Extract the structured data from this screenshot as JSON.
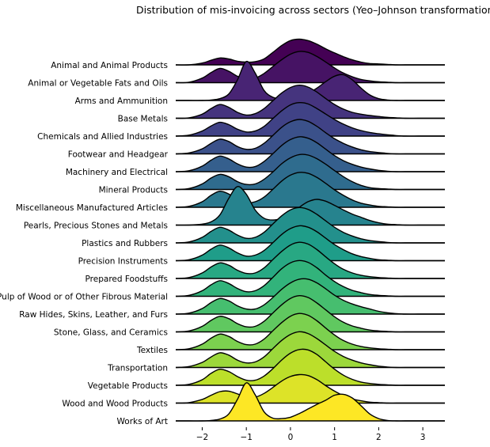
{
  "chart_data": {
    "type": "area",
    "subtype": "ridgeline",
    "title": "Distribution of mis-invoicing across sectors (Yeo–Johnson transformation)",
    "xlabel": "",
    "ylabel": "",
    "xlim": [
      -2.6,
      3.5
    ],
    "xticks": [
      -2,
      -1,
      0,
      1,
      2,
      3
    ],
    "xtick_labels": [
      "−2",
      "−1",
      "0",
      "1",
      "2",
      "3"
    ],
    "grid": false,
    "legend": "none",
    "colormap": "viridis",
    "colormap_stops": [
      "#440154",
      "#482878",
      "#3e4989",
      "#31688e",
      "#26828e",
      "#1f9e89",
      "#35b779",
      "#6ece58",
      "#b5de2b",
      "#fde725"
    ],
    "x_samples": [
      -2.6,
      -2.3,
      -2.0,
      -1.8,
      -1.6,
      -1.4,
      -1.2,
      -1.0,
      -0.8,
      -0.6,
      -0.4,
      -0.2,
      0.0,
      0.2,
      0.4,
      0.6,
      0.8,
      1.0,
      1.2,
      1.4,
      1.6,
      1.8,
      2.0,
      2.2,
      2.4,
      2.6,
      2.9,
      3.2,
      3.5
    ],
    "series": [
      {
        "name": "Animal and Animal Products",
        "values": [
          0.0,
          0.0,
          0.04,
          0.1,
          0.15,
          0.13,
          0.08,
          0.06,
          0.07,
          0.13,
          0.27,
          0.42,
          0.53,
          0.56,
          0.53,
          0.45,
          0.35,
          0.26,
          0.18,
          0.11,
          0.06,
          0.03,
          0.02,
          0.01,
          0.0,
          0.0,
          0.0,
          0.0,
          0.0
        ]
      },
      {
        "name": "Animal or Vegetable Fats and Oils",
        "values": [
          0.0,
          0.01,
          0.1,
          0.22,
          0.31,
          0.25,
          0.14,
          0.08,
          0.1,
          0.2,
          0.35,
          0.5,
          0.62,
          0.68,
          0.66,
          0.57,
          0.45,
          0.32,
          0.21,
          0.13,
          0.07,
          0.04,
          0.02,
          0.01,
          0.0,
          0.0,
          0.0,
          0.0,
          0.0
        ]
      },
      {
        "name": "Arms and Ammunition",
        "values": [
          0.0,
          0.0,
          0.0,
          0.01,
          0.04,
          0.14,
          0.45,
          0.85,
          0.6,
          0.22,
          0.07,
          0.04,
          0.05,
          0.09,
          0.16,
          0.27,
          0.41,
          0.53,
          0.56,
          0.45,
          0.27,
          0.12,
          0.04,
          0.01,
          0.0,
          0.0,
          0.0,
          0.0,
          0.0
        ]
      },
      {
        "name": "Base Metals",
        "values": [
          0.0,
          0.01,
          0.09,
          0.21,
          0.3,
          0.24,
          0.13,
          0.07,
          0.1,
          0.21,
          0.38,
          0.55,
          0.67,
          0.72,
          0.68,
          0.57,
          0.43,
          0.3,
          0.2,
          0.13,
          0.09,
          0.06,
          0.04,
          0.02,
          0.01,
          0.0,
          0.0,
          0.0,
          0.0
        ]
      },
      {
        "name": "Chemicals and Allied Industries",
        "values": [
          0.0,
          0.02,
          0.11,
          0.22,
          0.3,
          0.25,
          0.15,
          0.09,
          0.11,
          0.21,
          0.38,
          0.55,
          0.68,
          0.73,
          0.7,
          0.6,
          0.48,
          0.36,
          0.26,
          0.18,
          0.12,
          0.08,
          0.05,
          0.03,
          0.01,
          0.0,
          0.0,
          0.0,
          0.0
        ]
      },
      {
        "name": "Footwear and Headgear",
        "values": [
          0.0,
          0.02,
          0.11,
          0.23,
          0.32,
          0.27,
          0.16,
          0.1,
          0.12,
          0.23,
          0.4,
          0.58,
          0.7,
          0.75,
          0.71,
          0.6,
          0.46,
          0.33,
          0.23,
          0.15,
          0.09,
          0.05,
          0.03,
          0.01,
          0.0,
          0.0,
          0.0,
          0.0,
          0.0
        ]
      },
      {
        "name": "Machinery and Electrical",
        "values": [
          0.0,
          0.02,
          0.12,
          0.25,
          0.34,
          0.28,
          0.17,
          0.1,
          0.11,
          0.22,
          0.39,
          0.57,
          0.7,
          0.76,
          0.73,
          0.63,
          0.49,
          0.35,
          0.24,
          0.16,
          0.1,
          0.06,
          0.03,
          0.01,
          0.0,
          0.0,
          0.0,
          0.0,
          0.0
        ]
      },
      {
        "name": "Mineral Products",
        "values": [
          0.0,
          0.02,
          0.12,
          0.25,
          0.33,
          0.28,
          0.17,
          0.11,
          0.12,
          0.22,
          0.38,
          0.56,
          0.69,
          0.76,
          0.75,
          0.67,
          0.55,
          0.41,
          0.28,
          0.17,
          0.09,
          0.04,
          0.02,
          0.01,
          0.0,
          0.0,
          0.0,
          0.0,
          0.0
        ]
      },
      {
        "name": "Miscellaneous Manufactured Articles",
        "values": [
          0.0,
          0.02,
          0.12,
          0.26,
          0.35,
          0.29,
          0.17,
          0.1,
          0.12,
          0.22,
          0.39,
          0.57,
          0.7,
          0.76,
          0.74,
          0.65,
          0.52,
          0.38,
          0.26,
          0.16,
          0.09,
          0.05,
          0.02,
          0.01,
          0.0,
          0.0,
          0.0,
          0.0,
          0.0
        ]
      },
      {
        "name": "Pearls, Precious Stones and Metals",
        "values": [
          0.0,
          0.0,
          0.02,
          0.07,
          0.22,
          0.58,
          0.84,
          0.67,
          0.33,
          0.15,
          0.11,
          0.15,
          0.25,
          0.39,
          0.51,
          0.56,
          0.52,
          0.43,
          0.33,
          0.24,
          0.17,
          0.1,
          0.05,
          0.02,
          0.01,
          0.0,
          0.0,
          0.0,
          0.0
        ]
      },
      {
        "name": "Plastics and Rubbers",
        "values": [
          0.0,
          0.02,
          0.12,
          0.25,
          0.34,
          0.28,
          0.17,
          0.1,
          0.12,
          0.23,
          0.41,
          0.59,
          0.72,
          0.77,
          0.73,
          0.62,
          0.48,
          0.34,
          0.23,
          0.15,
          0.09,
          0.05,
          0.03,
          0.01,
          0.0,
          0.0,
          0.0,
          0.0,
          0.0
        ]
      },
      {
        "name": "Precision Instruments",
        "values": [
          0.0,
          0.02,
          0.12,
          0.25,
          0.34,
          0.28,
          0.17,
          0.1,
          0.12,
          0.22,
          0.39,
          0.57,
          0.7,
          0.76,
          0.73,
          0.63,
          0.49,
          0.35,
          0.24,
          0.15,
          0.09,
          0.05,
          0.02,
          0.01,
          0.0,
          0.0,
          0.0,
          0.0,
          0.0
        ]
      },
      {
        "name": "Prepared Foodstuffs",
        "values": [
          0.0,
          0.02,
          0.12,
          0.25,
          0.34,
          0.29,
          0.18,
          0.11,
          0.12,
          0.23,
          0.41,
          0.59,
          0.73,
          0.79,
          0.75,
          0.63,
          0.47,
          0.32,
          0.2,
          0.12,
          0.07,
          0.04,
          0.02,
          0.01,
          0.0,
          0.0,
          0.0,
          0.0,
          0.0
        ]
      },
      {
        "name": "Pulp of Wood or of Other Fibrous Material",
        "values": [
          0.0,
          0.02,
          0.12,
          0.25,
          0.34,
          0.28,
          0.17,
          0.1,
          0.12,
          0.23,
          0.41,
          0.6,
          0.73,
          0.78,
          0.74,
          0.62,
          0.46,
          0.32,
          0.21,
          0.13,
          0.08,
          0.04,
          0.02,
          0.01,
          0.0,
          0.0,
          0.0,
          0.0,
          0.0
        ]
      },
      {
        "name": "Raw Hides, Skins, Leather, and Furs",
        "values": [
          0.0,
          0.02,
          0.12,
          0.25,
          0.34,
          0.29,
          0.18,
          0.11,
          0.11,
          0.2,
          0.36,
          0.54,
          0.68,
          0.76,
          0.76,
          0.68,
          0.55,
          0.41,
          0.3,
          0.22,
          0.16,
          0.11,
          0.06,
          0.03,
          0.01,
          0.0,
          0.0,
          0.0,
          0.0
        ]
      },
      {
        "name": "Stone, Glass, and Ceramics",
        "values": [
          0.0,
          0.02,
          0.12,
          0.25,
          0.34,
          0.29,
          0.18,
          0.11,
          0.12,
          0.23,
          0.41,
          0.59,
          0.73,
          0.79,
          0.75,
          0.63,
          0.48,
          0.33,
          0.21,
          0.13,
          0.08,
          0.04,
          0.02,
          0.01,
          0.0,
          0.0,
          0.0,
          0.0,
          0.0
        ]
      },
      {
        "name": "Textiles",
        "values": [
          0.0,
          0.02,
          0.12,
          0.25,
          0.34,
          0.29,
          0.18,
          0.11,
          0.12,
          0.23,
          0.41,
          0.59,
          0.73,
          0.79,
          0.75,
          0.63,
          0.47,
          0.32,
          0.2,
          0.12,
          0.07,
          0.04,
          0.02,
          0.01,
          0.0,
          0.0,
          0.0,
          0.0,
          0.0
        ]
      },
      {
        "name": "Transportation",
        "values": [
          0.0,
          0.02,
          0.11,
          0.23,
          0.32,
          0.27,
          0.16,
          0.1,
          0.12,
          0.23,
          0.41,
          0.59,
          0.72,
          0.78,
          0.74,
          0.63,
          0.49,
          0.35,
          0.24,
          0.16,
          0.1,
          0.06,
          0.03,
          0.01,
          0.0,
          0.0,
          0.0,
          0.0,
          0.0
        ]
      },
      {
        "name": "Vegetable Products",
        "values": [
          0.0,
          0.02,
          0.12,
          0.26,
          0.35,
          0.3,
          0.19,
          0.11,
          0.11,
          0.2,
          0.36,
          0.55,
          0.7,
          0.78,
          0.77,
          0.67,
          0.51,
          0.35,
          0.22,
          0.13,
          0.07,
          0.04,
          0.02,
          0.01,
          0.0,
          0.0,
          0.0,
          0.0,
          0.0
        ]
      },
      {
        "name": "Wood and Wood Products",
        "values": [
          0.0,
          0.01,
          0.08,
          0.17,
          0.25,
          0.26,
          0.2,
          0.13,
          0.13,
          0.21,
          0.34,
          0.48,
          0.58,
          0.62,
          0.6,
          0.51,
          0.38,
          0.26,
          0.16,
          0.09,
          0.05,
          0.02,
          0.01,
          0.0,
          0.0,
          0.0,
          0.0,
          0.0,
          0.0
        ]
      },
      {
        "name": "Works of Art",
        "values": [
          0.0,
          0.0,
          0.0,
          0.01,
          0.04,
          0.15,
          0.47,
          0.83,
          0.57,
          0.2,
          0.06,
          0.05,
          0.08,
          0.16,
          0.26,
          0.36,
          0.45,
          0.56,
          0.58,
          0.5,
          0.33,
          0.15,
          0.05,
          0.01,
          0.0,
          0.0,
          0.0,
          0.0,
          0.0
        ]
      }
    ]
  }
}
